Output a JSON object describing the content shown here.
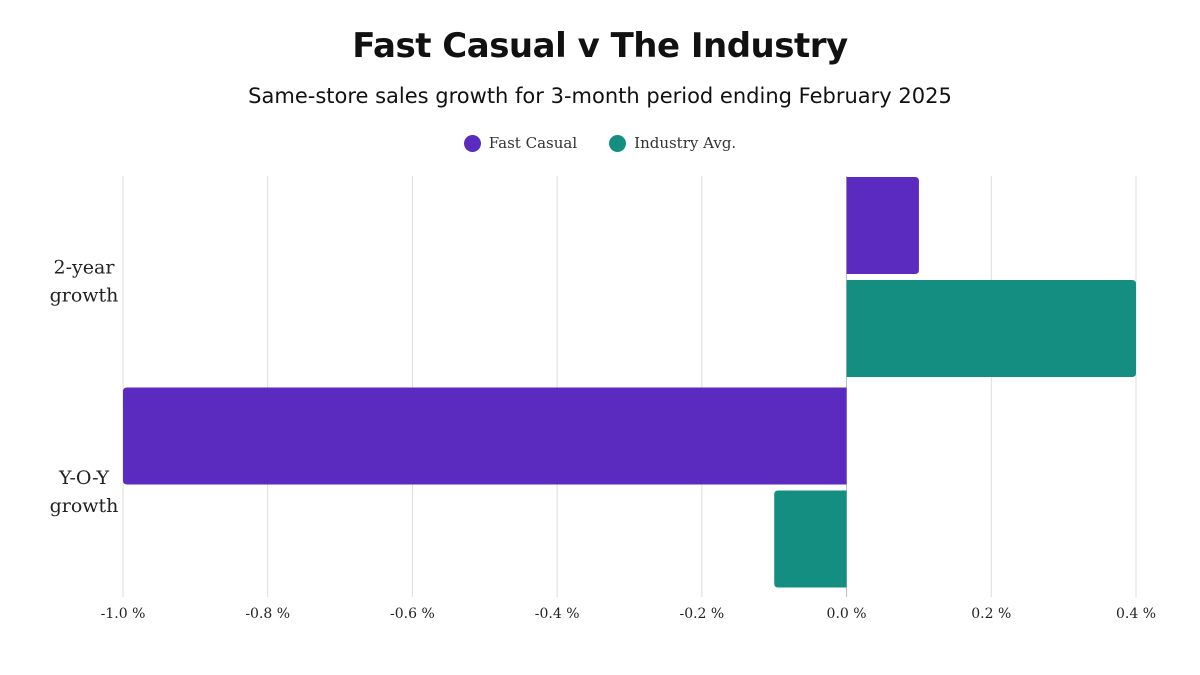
{
  "chart_data": {
    "type": "bar",
    "orientation": "horizontal",
    "title": "Fast Casual v The Industry",
    "subtitle": "Same-store sales growth for 3-month period ending February 2025",
    "categories": [
      [
        "2-year",
        "growth"
      ],
      [
        "Y-O-Y",
        "growth"
      ]
    ],
    "series": [
      {
        "name": "Fast Casual",
        "color": "#5b2bbf",
        "values": [
          0.1,
          -1.0
        ]
      },
      {
        "name": "Industry Avg.",
        "color": "#138e80",
        "values": [
          0.4,
          -0.1
        ]
      }
    ],
    "xlim": [
      -1.0,
      0.4
    ],
    "xticks": [
      -1.0,
      -0.8,
      -0.6,
      -0.4,
      -0.2,
      0.0,
      0.2,
      0.4
    ],
    "xtick_labels": [
      "-1.0 %",
      "-0.8 %",
      "-0.6 %",
      "-0.4 %",
      "-0.2 %",
      "0.0 %",
      "0.2 %",
      "0.4 %"
    ],
    "grid": true,
    "legend_position": "top-center"
  }
}
